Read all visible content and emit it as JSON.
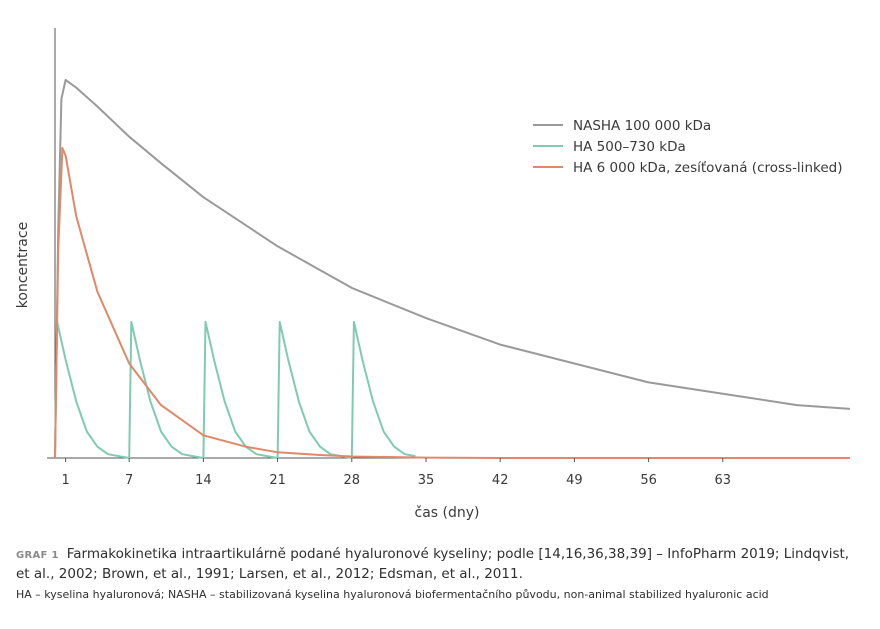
{
  "chart_data": {
    "type": "line",
    "xlabel": "čas (dny)",
    "ylabel": "koncentrace",
    "x_ticks": [
      1,
      7,
      14,
      21,
      28,
      35,
      42,
      49,
      56,
      63
    ],
    "xlim": [
      0,
      75
    ],
    "ylim": [
      0,
      1
    ],
    "grid": false,
    "legend_position": "top-right",
    "series": [
      {
        "name": "NASHA 100 000 kDa",
        "color": "#9a9a9a",
        "x": [
          0,
          0.3,
          0.6,
          1,
          2,
          4,
          7,
          10,
          14,
          21,
          28,
          35,
          42,
          49,
          56,
          63,
          70,
          75
        ],
        "y": [
          0,
          0.6,
          0.95,
          1.0,
          0.98,
          0.93,
          0.85,
          0.78,
          0.69,
          0.56,
          0.45,
          0.37,
          0.3,
          0.25,
          0.2,
          0.17,
          0.14,
          0.13
        ]
      },
      {
        "name": "HA 500–730 kDa",
        "color": "#7fcbb0",
        "x": [
          0,
          0.2,
          1,
          2,
          3,
          4,
          5,
          6,
          7,
          7.2,
          8,
          9,
          10,
          11,
          12,
          13,
          14,
          14.2,
          15,
          16,
          17,
          18,
          19,
          20,
          21,
          21.2,
          22,
          23,
          24,
          25,
          26,
          27,
          28,
          28.2,
          29,
          30,
          31,
          32,
          33,
          34
        ],
        "y": [
          0,
          0.36,
          0.26,
          0.15,
          0.07,
          0.03,
          0.01,
          0.005,
          0,
          0.36,
          0.26,
          0.15,
          0.07,
          0.03,
          0.01,
          0.005,
          0,
          0.36,
          0.26,
          0.15,
          0.07,
          0.03,
          0.01,
          0.005,
          0,
          0.36,
          0.26,
          0.15,
          0.07,
          0.03,
          0.01,
          0.005,
          0,
          0.36,
          0.26,
          0.15,
          0.07,
          0.03,
          0.01,
          0.005
        ]
      },
      {
        "name": "HA 6 000 kDa, zesíťovaná (cross-linked)",
        "color": "#e08868",
        "x": [
          0,
          0.3,
          0.7,
          1,
          2,
          4,
          7,
          10,
          14,
          18,
          21,
          25,
          28,
          35,
          42,
          75
        ],
        "y": [
          0,
          0.55,
          0.82,
          0.8,
          0.64,
          0.44,
          0.25,
          0.14,
          0.06,
          0.03,
          0.015,
          0.008,
          0.004,
          0.001,
          0,
          0
        ]
      }
    ]
  },
  "caption": {
    "tag": "GRAF 1",
    "text": "Farmakokinetika intraartikulárně podané hyaluronové kyseliny; podle [14,16,36,38,39] – InfoPharm 2019; Lindqvist, et al., 2002; Brown, et al., 1991; Larsen, et al., 2012; Edsman, et al., 2011."
  },
  "note": "HA – kyselina hyaluronová; NASHA – stabilizovaná kyselina hyaluronová biofermentačního původu, non-animal stabilized hyaluronic acid"
}
